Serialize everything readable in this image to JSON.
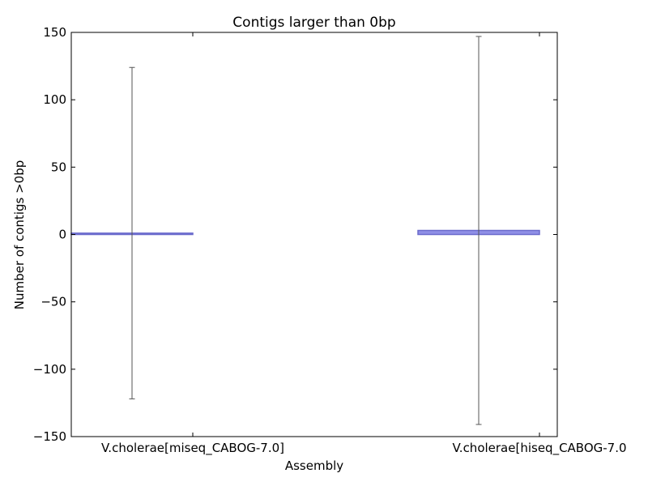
{
  "chart_data": {
    "type": "bar",
    "title": "Contigs larger than 0bp",
    "xlabel": "Assembly",
    "ylabel": "Number of contigs >0bp",
    "categories": [
      "V.cholerae[miseq_CABOG-7.0]",
      "V.cholerae[hiseq_CABOG-7.0"
    ],
    "values": [
      1,
      3
    ],
    "error": [
      123,
      144
    ],
    "ylim": [
      -150,
      150
    ],
    "yticks": [
      -150,
      -100,
      -50,
      0,
      50,
      100,
      150
    ],
    "ytick_labels": [
      "−150",
      "−100",
      "−50",
      "0",
      "50",
      "100",
      "150"
    ],
    "grid": false,
    "colors": {
      "bar_fill": "#8f8fe6",
      "bar_edge": "#6b6bcc",
      "errorbar": "#555555",
      "axis": "#000000"
    }
  }
}
